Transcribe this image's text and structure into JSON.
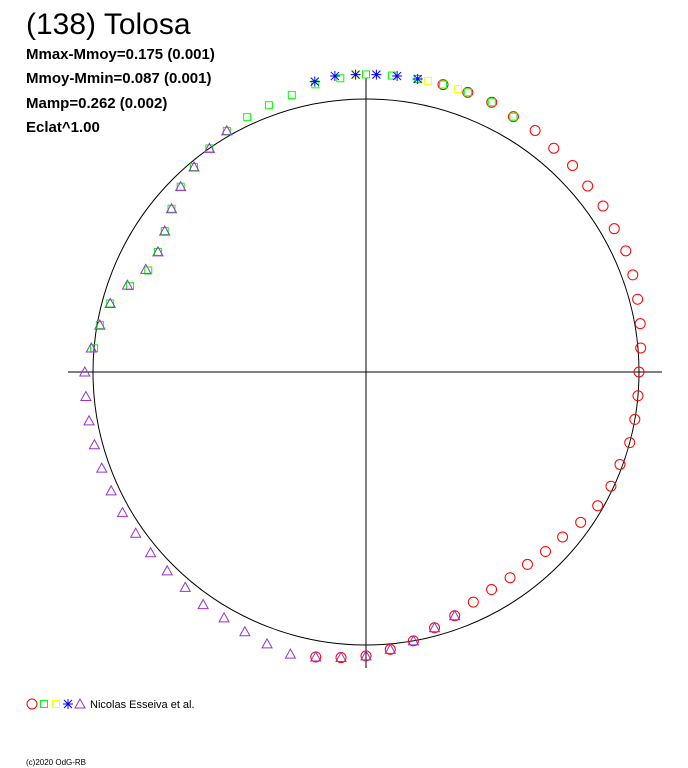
{
  "chart_data": {
    "type": "polar",
    "title": "(138) Tolosa",
    "annotations": [
      "Mmax-Mmoy=0.175 (0.001)",
      "Mmoy-Mmin=0.087 (0.001)",
      "Mamp=0.262 (0.002)",
      "Eclat^1.00"
    ],
    "circle_radius": 1,
    "legend_label": "Nicolas Esseiva et al.",
    "series": [
      {
        "color": "#ff0000",
        "marker": "circle",
        "theta": [
          75,
          70,
          65,
          60,
          55,
          50,
          45,
          40,
          35,
          30,
          25,
          20,
          15,
          10,
          5,
          0,
          -5,
          -10,
          -15,
          -20,
          -25,
          -30,
          -35,
          -40,
          -45,
          -50,
          -55,
          -60,
          -65,
          -70,
          -75,
          -80,
          -85,
          -90,
          -95,
          -100
        ],
        "r": [
          1.09,
          1.09,
          1.09,
          1.08,
          1.08,
          1.07,
          1.07,
          1.06,
          1.06,
          1.05,
          1.05,
          1.04,
          1.03,
          1.02,
          1.01,
          1.0,
          1.0,
          1.0,
          1.0,
          0.99,
          0.99,
          0.98,
          0.96,
          0.94,
          0.93,
          0.92,
          0.92,
          0.92,
          0.93,
          0.95,
          0.97,
          1.0,
          1.02,
          1.04,
          1.05,
          1.06
        ]
      },
      {
        "color": "#00ff00",
        "marker": "square",
        "theta": [
          175,
          170,
          165,
          160,
          155,
          150,
          145,
          140,
          135,
          130,
          125,
          120,
          115,
          110,
          105,
          100,
          95,
          90,
          85,
          80,
          75,
          70,
          65,
          60
        ],
        "r": [
          1.0,
          0.99,
          0.97,
          0.92,
          0.88,
          0.88,
          0.9,
          0.93,
          0.96,
          0.98,
          1.0,
          1.02,
          1.03,
          1.04,
          1.05,
          1.07,
          1.08,
          1.09,
          1.09,
          1.09,
          1.09,
          1.09,
          1.09,
          1.08
        ]
      },
      {
        "color": "#ffff00",
        "marker": "square",
        "theta": [
          92,
          78,
          72
        ],
        "r": [
          1.09,
          1.09,
          1.09
        ]
      },
      {
        "color": "#0000ff",
        "marker": "star",
        "theta": [
          100,
          96,
          92,
          88,
          84,
          80
        ],
        "r": [
          1.08,
          1.09,
          1.09,
          1.09,
          1.09,
          1.09
        ]
      },
      {
        "color": "#9933cc",
        "marker": "triangle",
        "theta": [
          -70,
          -75,
          -80,
          -85,
          -90,
          -95,
          -100,
          -105,
          -110,
          -115,
          -120,
          -125,
          -130,
          -135,
          -140,
          -145,
          -150,
          -155,
          -160,
          -165,
          -170,
          -175,
          180,
          175,
          170,
          165,
          160,
          155,
          150,
          145,
          140,
          135,
          130,
          125,
          120
        ],
        "r": [
          0.95,
          0.97,
          1.0,
          1.02,
          1.04,
          1.05,
          1.06,
          1.07,
          1.06,
          1.05,
          1.04,
          1.04,
          1.03,
          1.03,
          1.03,
          1.03,
          1.03,
          1.03,
          1.03,
          1.03,
          1.03,
          1.03,
          1.03,
          1.01,
          0.99,
          0.97,
          0.93,
          0.89,
          0.88,
          0.9,
          0.93,
          0.96,
          0.98,
          1.0,
          1.02
        ]
      }
    ]
  },
  "footer": "(c)2020 OdG-RB"
}
